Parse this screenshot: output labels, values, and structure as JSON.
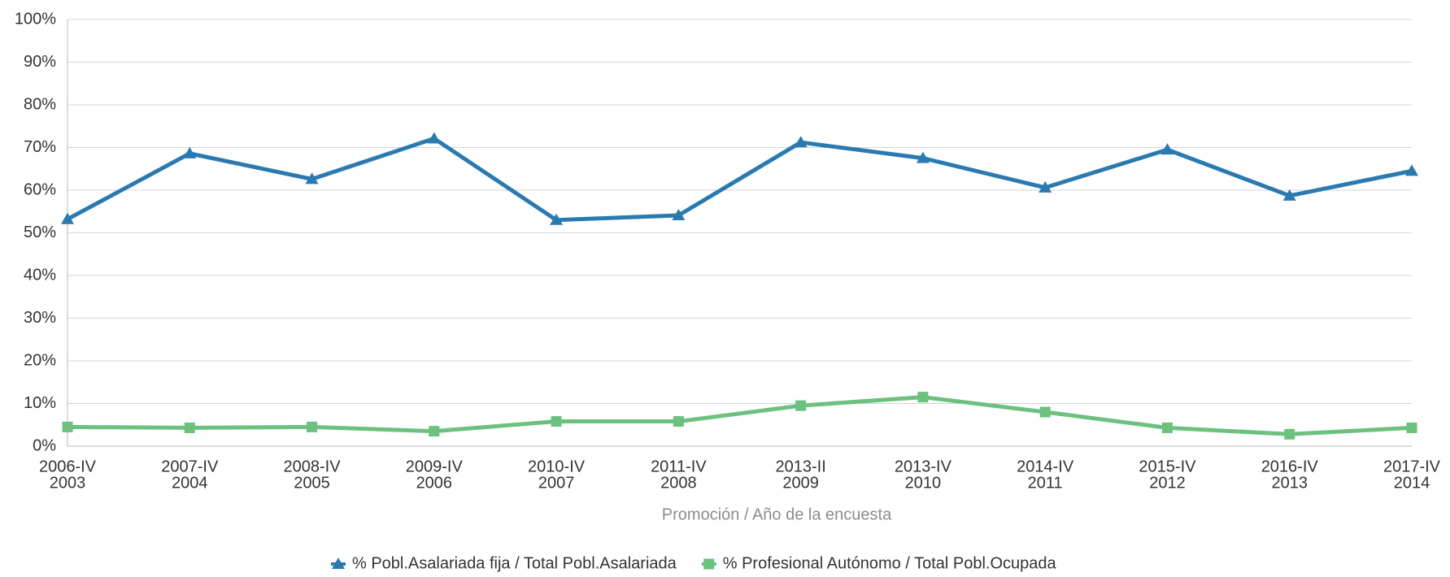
{
  "chart_data": {
    "type": "line",
    "x_label": "Promoción / Año de la encuesta",
    "categories": [
      [
        "2006-IV",
        "2003"
      ],
      [
        "2007-IV",
        "2004"
      ],
      [
        "2008-IV",
        "2005"
      ],
      [
        "2009-IV",
        "2006"
      ],
      [
        "2010-IV",
        "2007"
      ],
      [
        "2011-IV",
        "2008"
      ],
      [
        "2013-II",
        "2009"
      ],
      [
        "2013-IV",
        "2010"
      ],
      [
        "2014-IV",
        "2011"
      ],
      [
        "2015-IV",
        "2012"
      ],
      [
        "2016-IV",
        "2013"
      ],
      [
        "2017-IV",
        "2014"
      ]
    ],
    "series": [
      {
        "name": "% Pobl.Asalariada fija / Total Pobl.Asalariada",
        "color": "#2a7ab0",
        "marker": "triangle",
        "values": [
          53.2,
          68.6,
          62.6,
          72.1,
          53.0,
          54.1,
          71.2,
          67.5,
          60.6,
          69.5,
          58.7,
          64.5
        ]
      },
      {
        "name": "% Profesional Autónomo / Total Pobl.Ocupada",
        "color": "#6cc17f",
        "marker": "square",
        "values": [
          4.5,
          4.3,
          4.5,
          3.5,
          5.8,
          5.8,
          9.5,
          11.5,
          8.0,
          4.3,
          2.8,
          4.3
        ]
      }
    ],
    "ylim": [
      0,
      100
    ],
    "yticks": [
      {
        "value": 0,
        "label": "0%"
      },
      {
        "value": 10,
        "label": "10%"
      },
      {
        "value": 20,
        "label": "20%"
      },
      {
        "value": 30,
        "label": "30%"
      },
      {
        "value": 40,
        "label": "40%"
      },
      {
        "value": 50,
        "label": "50%"
      },
      {
        "value": 60,
        "label": "60%"
      },
      {
        "value": 70,
        "label": "70%"
      },
      {
        "value": 80,
        "label": "80%"
      },
      {
        "value": 90,
        "label": "90%"
      },
      {
        "value": 100,
        "label": "100%"
      }
    ],
    "grid": true,
    "legend": "bottom"
  }
}
